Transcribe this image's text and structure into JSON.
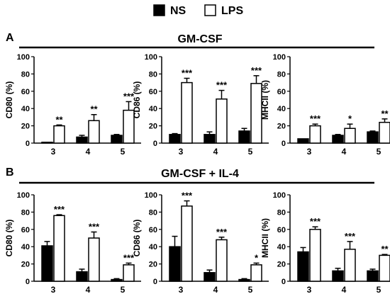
{
  "legend": [
    {
      "label": "NS",
      "fill": "#000000"
    },
    {
      "label": "LPS",
      "fill": "#ffffff"
    }
  ],
  "panels": [
    {
      "letter": "A",
      "title": "GM-CSF"
    },
    {
      "letter": "B",
      "title": "GM-CSF + IL-4"
    }
  ],
  "chart_data": [
    {
      "type": "bar",
      "panel": "A",
      "categories": [
        "3",
        "4",
        "5"
      ],
      "ylabel": "CD80 (%)",
      "ylim": [
        0,
        100
      ],
      "yticks": [
        0,
        20,
        40,
        60,
        80,
        100
      ],
      "series": [
        {
          "name": "NS",
          "values": [
            1,
            7,
            9
          ],
          "errors": [
            0,
            2,
            1
          ]
        },
        {
          "name": "LPS",
          "values": [
            20,
            26,
            38
          ],
          "errors": [
            1,
            7,
            10
          ]
        }
      ],
      "significance": [
        "**",
        "**",
        "***"
      ]
    },
    {
      "type": "bar",
      "panel": "A",
      "categories": [
        "3",
        "4",
        "5"
      ],
      "ylabel": "CD86 (%)",
      "ylim": [
        0,
        100
      ],
      "yticks": [
        0,
        20,
        40,
        60,
        80,
        100
      ],
      "series": [
        {
          "name": "NS",
          "values": [
            10,
            10,
            14
          ],
          "errors": [
            1,
            3,
            3
          ]
        },
        {
          "name": "LPS",
          "values": [
            70,
            51,
            69
          ],
          "errors": [
            5,
            10,
            9
          ]
        }
      ],
      "significance": [
        "***",
        "***",
        "***"
      ]
    },
    {
      "type": "bar",
      "panel": "A",
      "categories": [
        "3",
        "4",
        "5"
      ],
      "ylabel": "MHCII (%)",
      "ylim": [
        0,
        100
      ],
      "yticks": [
        0,
        20,
        40,
        60,
        80,
        100
      ],
      "series": [
        {
          "name": "NS",
          "values": [
            5,
            9,
            13
          ],
          "errors": [
            0,
            1,
            1
          ]
        },
        {
          "name": "LPS",
          "values": [
            20,
            17,
            24
          ],
          "errors": [
            2,
            5,
            4
          ]
        }
      ],
      "significance": [
        "***",
        "*",
        "**"
      ]
    },
    {
      "type": "bar",
      "panel": "B",
      "categories": [
        "3",
        "4",
        "5"
      ],
      "ylabel": "CD80 (%)",
      "ylim": [
        0,
        100
      ],
      "yticks": [
        0,
        20,
        40,
        60,
        80,
        100
      ],
      "series": [
        {
          "name": "NS",
          "values": [
            41,
            11,
            2
          ],
          "errors": [
            5,
            3,
            1
          ]
        },
        {
          "name": "LPS",
          "values": [
            76,
            50,
            19
          ],
          "errors": [
            1,
            7,
            2
          ]
        }
      ],
      "significance": [
        "***",
        "***",
        "***"
      ]
    },
    {
      "type": "bar",
      "panel": "B",
      "categories": [
        "3",
        "4",
        "5"
      ],
      "ylabel": "CD86 (%)",
      "ylim": [
        0,
        100
      ],
      "yticks": [
        0,
        20,
        40,
        60,
        80,
        100
      ],
      "series": [
        {
          "name": "NS",
          "values": [
            40,
            10,
            2
          ],
          "errors": [
            12,
            3,
            1
          ]
        },
        {
          "name": "LPS",
          "values": [
            87,
            48,
            19
          ],
          "errors": [
            6,
            3,
            2
          ]
        }
      ],
      "significance": [
        "***",
        "***",
        "*"
      ]
    },
    {
      "type": "bar",
      "panel": "B",
      "categories": [
        "3",
        "4",
        "5"
      ],
      "ylabel": "MHCII (%)",
      "ylim": [
        0,
        100
      ],
      "yticks": [
        0,
        20,
        40,
        60,
        80,
        100
      ],
      "series": [
        {
          "name": "NS",
          "values": [
            34,
            12,
            12
          ],
          "errors": [
            5,
            3,
            2
          ]
        },
        {
          "name": "LPS",
          "values": [
            60,
            37,
            30
          ],
          "errors": [
            3,
            9,
            1
          ]
        }
      ],
      "significance": [
        "***",
        "***",
        "**"
      ]
    }
  ]
}
